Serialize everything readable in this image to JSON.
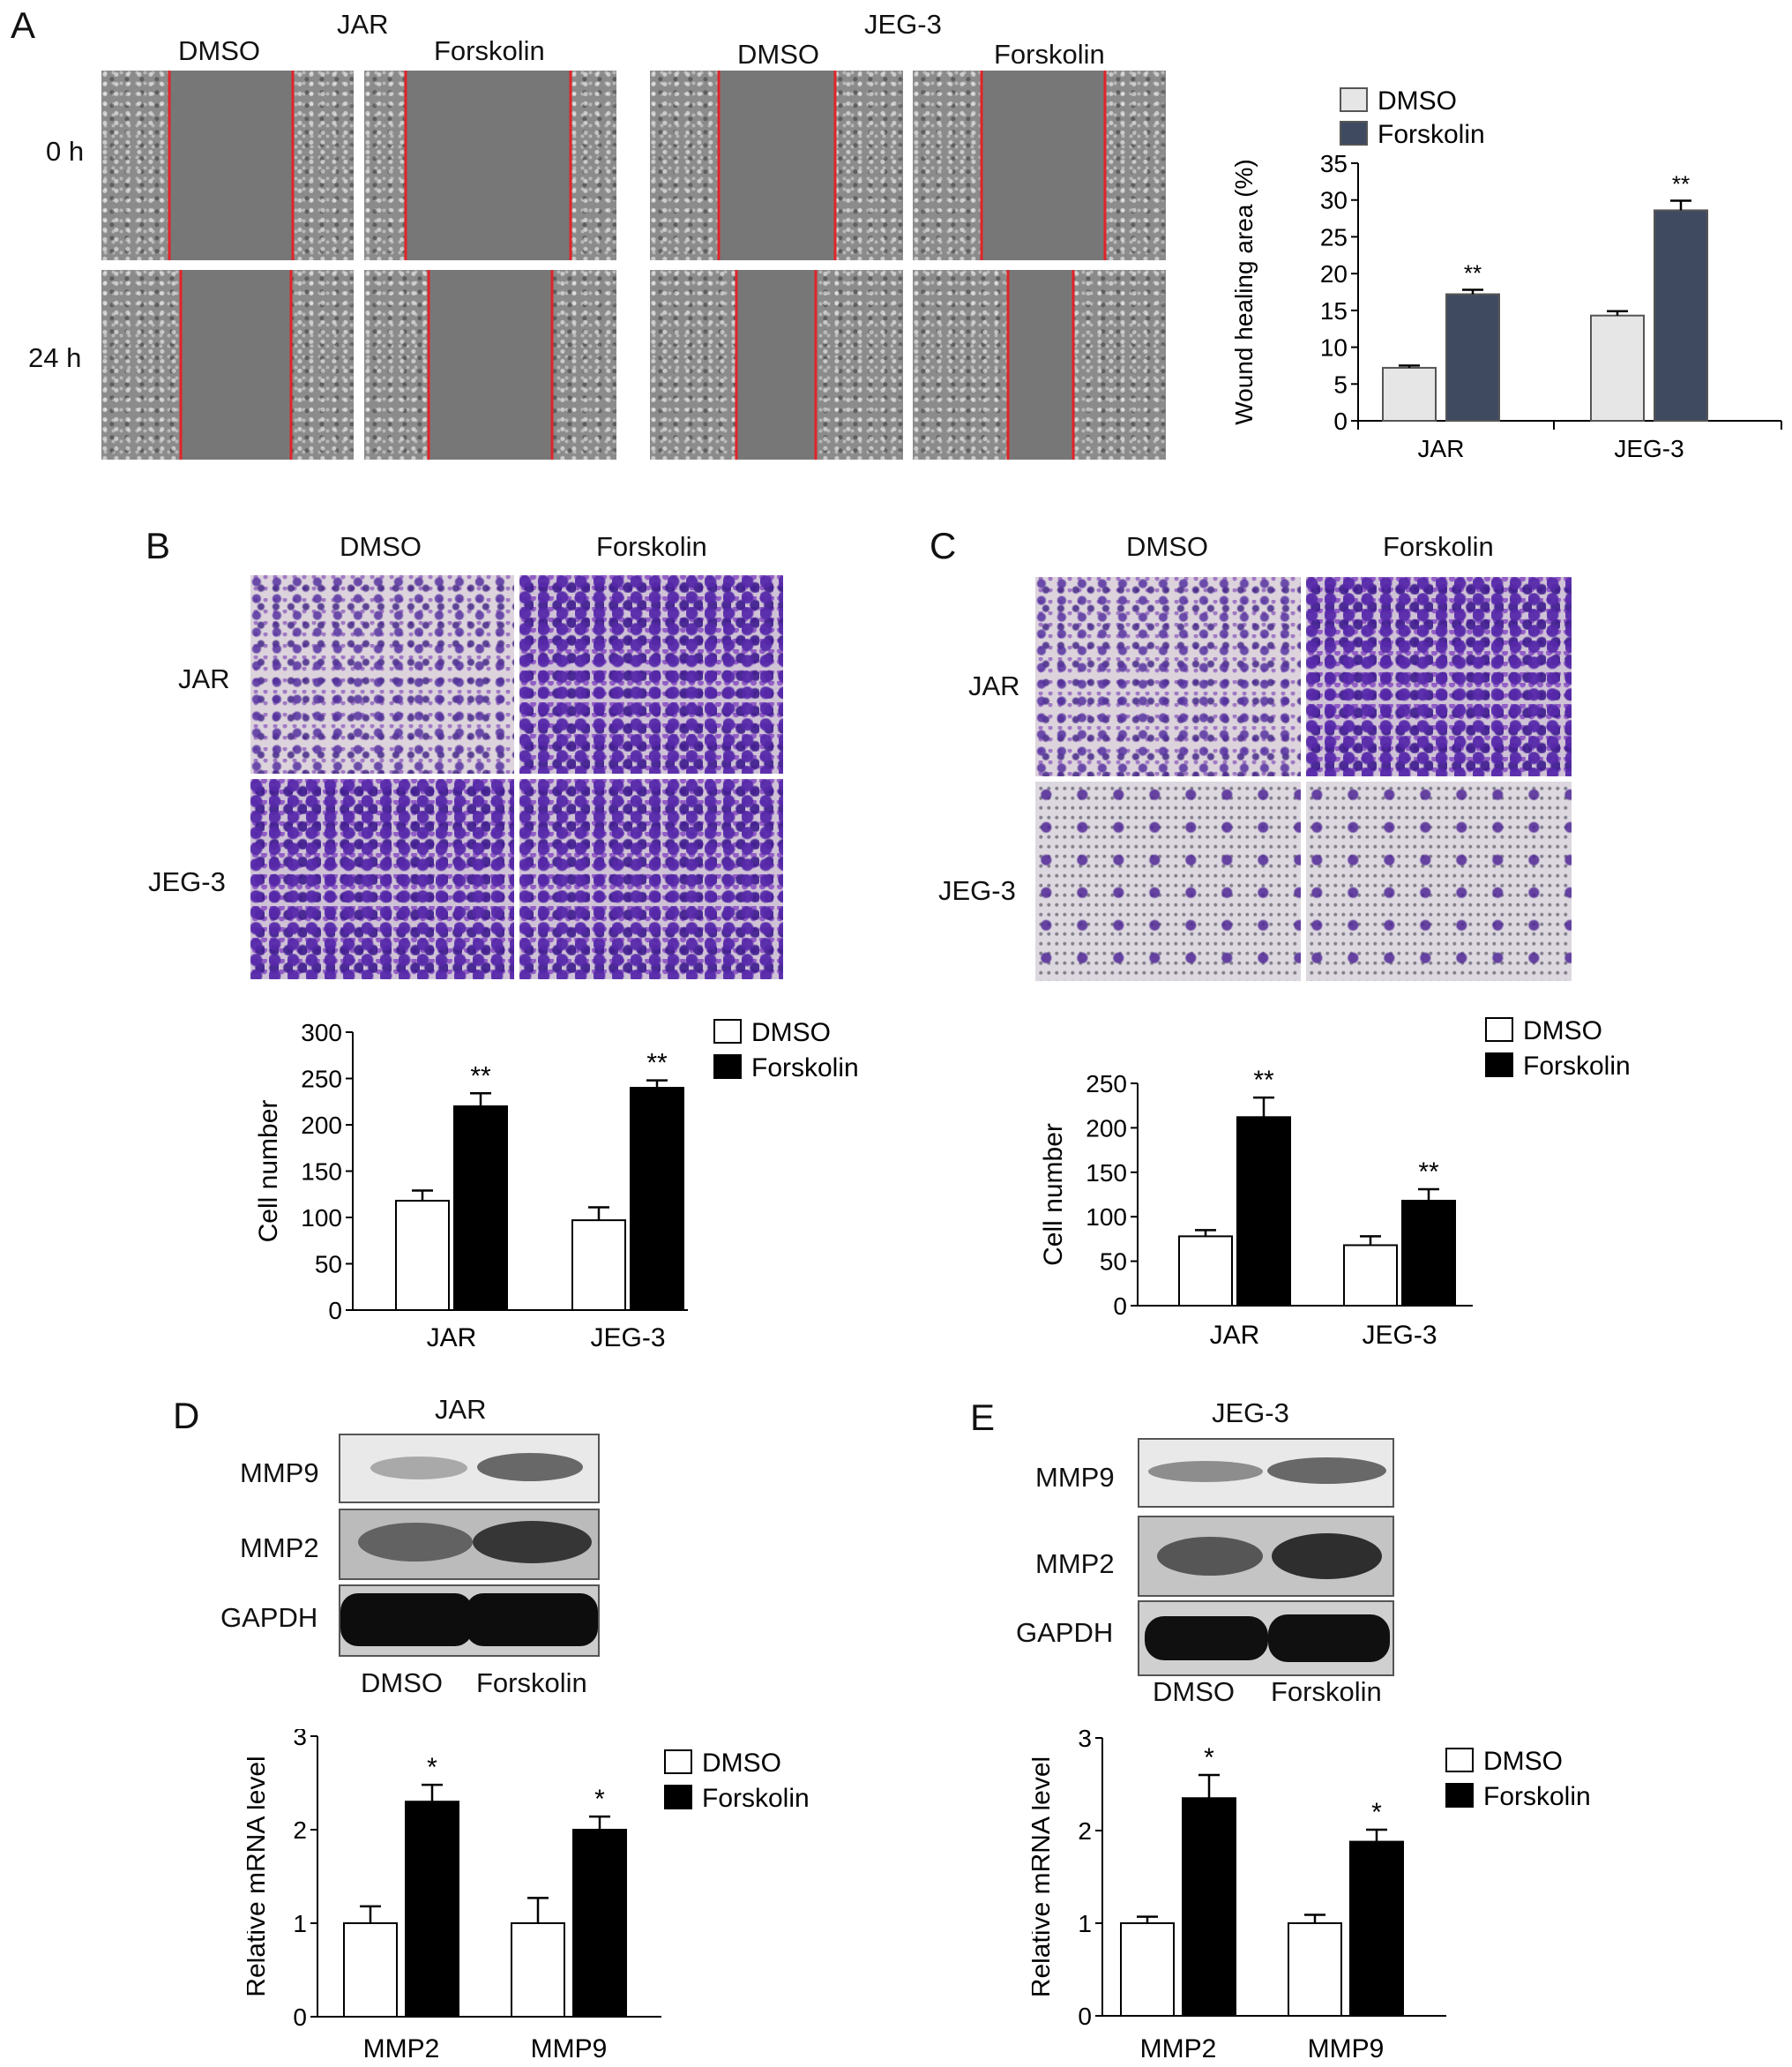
{
  "panels": {
    "A": {
      "letter": "A",
      "cell_jar": "JAR",
      "cell_jeg": "JEG-3",
      "col_dmso": "DMSO",
      "col_forskolin": "Forskolin",
      "row_0h": "0 h",
      "row_24h": "24 h"
    },
    "B": {
      "letter": "B",
      "col_dmso": "DMSO",
      "col_forskolin": "Forskolin",
      "row_jar": "JAR",
      "row_jeg": "JEG-3"
    },
    "C": {
      "letter": "C",
      "col_dmso": "DMSO",
      "col_forskolin": "Forskolin",
      "row_jar": "JAR",
      "row_jeg": "JEG-3"
    },
    "D": {
      "letter": "D",
      "title": "JAR",
      "row_mmp9": "MMP9",
      "row_mmp2": "MMP2",
      "row_gapdh": "GAPDH",
      "lane_dmso": "DMSO",
      "lane_forskolin": "Forskolin"
    },
    "E": {
      "letter": "E",
      "title": "JEG-3",
      "row_mmp9": "MMP9",
      "row_mmp2": "MMP2",
      "row_gapdh": "GAPDH",
      "lane_dmso": "DMSO",
      "lane_forskolin": "Forskolin"
    }
  },
  "chart_data": [
    {
      "id": "A",
      "type": "bar",
      "categories": [
        "JAR",
        "JEG-3"
      ],
      "series": [
        {
          "name": "DMSO",
          "values": [
            7.2,
            14.3
          ],
          "errors": [
            0.3,
            0.6
          ],
          "color": "#e6e6e6"
        },
        {
          "name": "Forskolin",
          "values": [
            17.2,
            28.6
          ],
          "errors": [
            0.6,
            1.3
          ],
          "color": "#3f4a61"
        }
      ],
      "significance": [
        "",
        "",
        "**",
        "**"
      ],
      "ylabel": "Wound healing area (%)",
      "ylim": [
        0,
        35
      ],
      "yticks": [
        "0",
        "5",
        "10",
        "15",
        "20",
        "25",
        "30",
        "35"
      ],
      "legend": "top-left"
    },
    {
      "id": "B",
      "type": "bar",
      "categories": [
        "JAR",
        "JEG-3"
      ],
      "series": [
        {
          "name": "DMSO",
          "values": [
            118,
            97
          ],
          "errors": [
            11,
            14
          ],
          "color": "#ffffff"
        },
        {
          "name": "Forskolin",
          "values": [
            220,
            240
          ],
          "errors": [
            14,
            8
          ],
          "color": "#000000"
        }
      ],
      "significance": [
        "",
        "",
        "**",
        "**"
      ],
      "ylabel": "Cell number",
      "ylim": [
        0,
        300
      ],
      "yticks": [
        "0",
        "50",
        "100",
        "150",
        "200",
        "250",
        "300"
      ],
      "legend": "top-right"
    },
    {
      "id": "C",
      "type": "bar",
      "categories": [
        "JAR",
        "JEG-3"
      ],
      "series": [
        {
          "name": "DMSO",
          "values": [
            78,
            68
          ],
          "errors": [
            7,
            10
          ],
          "color": "#ffffff"
        },
        {
          "name": "Forskolin",
          "values": [
            212,
            118
          ],
          "errors": [
            22,
            13
          ],
          "color": "#000000"
        }
      ],
      "significance": [
        "",
        "",
        "**",
        "**"
      ],
      "ylabel": "Cell number",
      "ylim": [
        0,
        250
      ],
      "yticks": [
        "0",
        "50",
        "100",
        "150",
        "200",
        "250"
      ],
      "legend": "top-right"
    },
    {
      "id": "D",
      "type": "bar",
      "categories": [
        "MMP2",
        "MMP9"
      ],
      "series": [
        {
          "name": "DMSO",
          "values": [
            1.0,
            1.0
          ],
          "errors": [
            0.18,
            0.27
          ],
          "color": "#ffffff"
        },
        {
          "name": "Forskolin",
          "values": [
            2.3,
            2.0
          ],
          "errors": [
            0.18,
            0.14
          ],
          "color": "#000000"
        }
      ],
      "significance": [
        "",
        "",
        "*",
        "*"
      ],
      "ylabel": "Relative mRNA level",
      "ylim": [
        0,
        3
      ],
      "yticks": [
        "0",
        "1",
        "2",
        "3"
      ],
      "legend": "top-right"
    },
    {
      "id": "E",
      "type": "bar",
      "categories": [
        "MMP2",
        "MMP9"
      ],
      "series": [
        {
          "name": "DMSO",
          "values": [
            1.0,
            1.0
          ],
          "errors": [
            0.07,
            0.09
          ],
          "color": "#ffffff"
        },
        {
          "name": "Forskolin",
          "values": [
            2.35,
            1.88
          ],
          "errors": [
            0.25,
            0.13
          ],
          "color": "#000000"
        }
      ],
      "significance": [
        "",
        "",
        "*",
        "*"
      ],
      "ylabel": "Relative mRNA level",
      "ylim": [
        0,
        3
      ],
      "yticks": [
        "0",
        "1",
        "2",
        "3"
      ],
      "legend": "top-right"
    }
  ]
}
